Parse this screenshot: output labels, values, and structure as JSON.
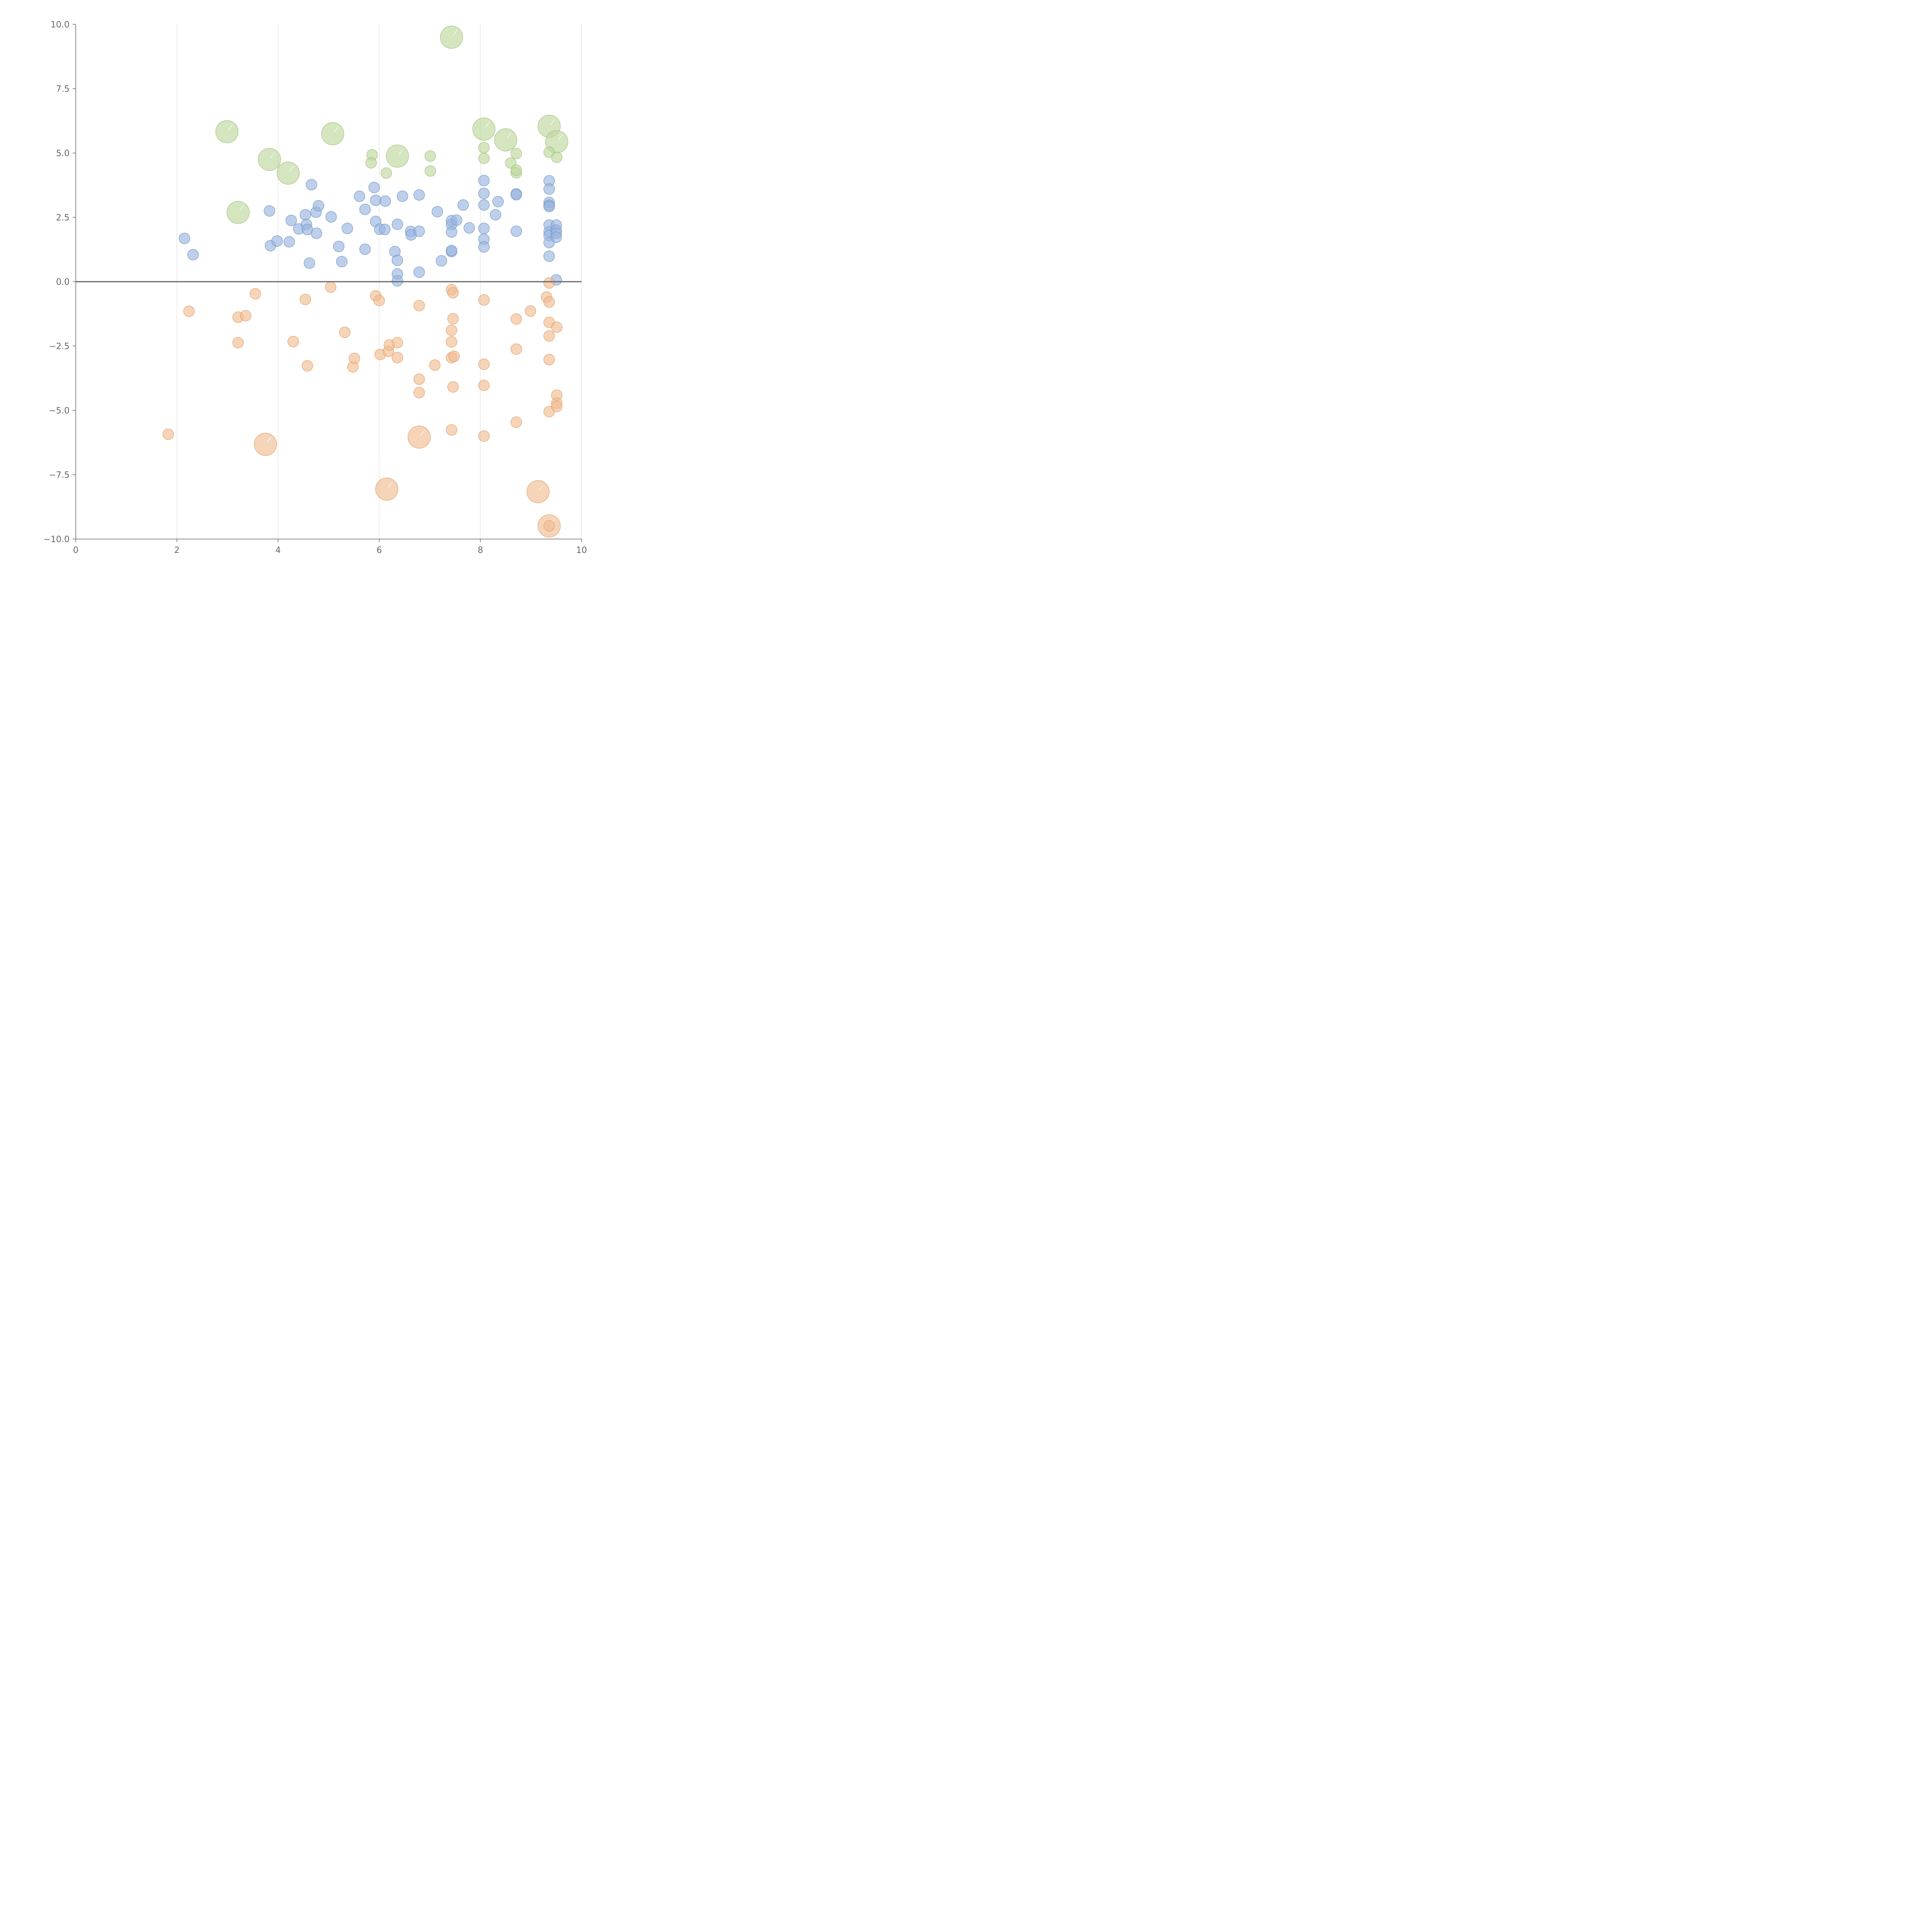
{
  "chart_data": {
    "type": "scatter",
    "title": "",
    "xlabel": "",
    "ylabel": "",
    "xlim": [
      0,
      10
    ],
    "ylim": [
      -10,
      10
    ],
    "grid": {
      "vertical": true,
      "horizontal": false
    },
    "zero_line": true,
    "legend": "none",
    "x_ticks": [
      "0",
      "2",
      "4",
      "6",
      "8",
      "10"
    ],
    "x_tick_values": [
      0,
      2,
      4,
      6,
      8,
      10
    ],
    "y_ticks": [
      "10.0",
      "7.5",
      "5.0",
      "2.5",
      "0.0",
      "−2.5",
      "−5.0",
      "−7.5",
      "−10.0"
    ],
    "y_tick_values": [
      10,
      7.5,
      5,
      2.5,
      0,
      -2.5,
      -5,
      -7.5,
      -10
    ],
    "series": [
      {
        "color": "#9ab6df",
        "stroke": "#7497c9",
        "points": [
          [
            2.15,
            1.68,
            0
          ],
          [
            2.32,
            1.05,
            0
          ],
          [
            3.83,
            2.75,
            0
          ],
          [
            3.85,
            1.4,
            0
          ],
          [
            3.98,
            1.58,
            0
          ],
          [
            4.22,
            1.55,
            0
          ],
          [
            4.26,
            2.38,
            0
          ],
          [
            4.41,
            2.05,
            0
          ],
          [
            4.54,
            2.6,
            0
          ],
          [
            4.56,
            2.22,
            0
          ],
          [
            4.58,
            2.03,
            0
          ],
          [
            4.62,
            0.72,
            0
          ],
          [
            4.66,
            3.77,
            0
          ],
          [
            4.75,
            2.7,
            0
          ],
          [
            4.76,
            1.88,
            0
          ],
          [
            4.8,
            2.95,
            0
          ],
          [
            5.05,
            2.52,
            0
          ],
          [
            5.2,
            1.37,
            0
          ],
          [
            5.26,
            0.78,
            0
          ],
          [
            5.37,
            2.07,
            0
          ],
          [
            5.61,
            3.32,
            0
          ],
          [
            5.72,
            2.81,
            0
          ],
          [
            5.72,
            1.26,
            0
          ],
          [
            5.9,
            3.66,
            0
          ],
          [
            5.93,
            3.16,
            0
          ],
          [
            5.93,
            2.34,
            0
          ],
          [
            6.01,
            2.04,
            0
          ],
          [
            6.12,
            3.13,
            0
          ],
          [
            6.11,
            2.03,
            0
          ],
          [
            6.31,
            1.17,
            0
          ],
          [
            6.36,
            2.23,
            0
          ],
          [
            6.36,
            0.83,
            0
          ],
          [
            6.36,
            0.3,
            0
          ],
          [
            6.36,
            0.03,
            0
          ],
          [
            6.46,
            3.32,
            0
          ],
          [
            6.62,
            1.95,
            0
          ],
          [
            6.63,
            1.82,
            0
          ],
          [
            6.79,
            1.96,
            0
          ],
          [
            6.79,
            3.37,
            0
          ],
          [
            6.79,
            0.37,
            0
          ],
          [
            7.15,
            2.72,
            0
          ],
          [
            7.23,
            0.81,
            0
          ],
          [
            7.43,
            2.37,
            0
          ],
          [
            7.43,
            2.22,
            0
          ],
          [
            7.43,
            1.93,
            0
          ],
          [
            7.43,
            1.17,
            0
          ],
          [
            7.43,
            1.21,
            0
          ],
          [
            7.53,
            2.39,
            0
          ],
          [
            7.66,
            2.98,
            0
          ],
          [
            7.78,
            2.09,
            0
          ],
          [
            8.07,
            3.93,
            0
          ],
          [
            8.07,
            3.43,
            0
          ],
          [
            8.07,
            2.98,
            0
          ],
          [
            8.07,
            2.07,
            0
          ],
          [
            8.07,
            1.65,
            0
          ],
          [
            8.07,
            1.35,
            0
          ],
          [
            8.35,
            3.11,
            0
          ],
          [
            8.3,
            2.6,
            0
          ],
          [
            8.71,
            3.41,
            0
          ],
          [
            8.71,
            3.38,
            0
          ],
          [
            8.71,
            1.96,
            0
          ],
          [
            9.36,
            3.92,
            0
          ],
          [
            9.36,
            3.6,
            0
          ],
          [
            9.36,
            3.08,
            0
          ],
          [
            9.36,
            2.97,
            0
          ],
          [
            9.36,
            2.92,
            0
          ],
          [
            9.36,
            2.2,
            0
          ],
          [
            9.36,
            1.93,
            0
          ],
          [
            9.36,
            1.8,
            0
          ],
          [
            9.36,
            1.52,
            0
          ],
          [
            9.36,
            0.99,
            0
          ],
          [
            9.5,
            2.2,
            0
          ],
          [
            9.5,
            2.0,
            0
          ],
          [
            9.5,
            1.88,
            0
          ],
          [
            9.5,
            1.73,
            0
          ],
          [
            9.5,
            0.07,
            0
          ]
        ]
      },
      {
        "color": "#bfd79e",
        "stroke": "#a3c37d",
        "points": [
          [
            2.99,
            5.83,
            1
          ],
          [
            3.21,
            2.69,
            1
          ],
          [
            3.83,
            4.75,
            1
          ],
          [
            4.2,
            4.22,
            1
          ],
          [
            5.08,
            5.75,
            1
          ],
          [
            5.86,
            4.93,
            0
          ],
          [
            5.84,
            4.62,
            0
          ],
          [
            6.14,
            4.22,
            0
          ],
          [
            6.36,
            4.88,
            1
          ],
          [
            7.01,
            4.88,
            0
          ],
          [
            7.01,
            4.3,
            0
          ],
          [
            7.43,
            9.5,
            1
          ],
          [
            8.07,
            5.93,
            1
          ],
          [
            8.07,
            5.21,
            0
          ],
          [
            8.07,
            4.79,
            0
          ],
          [
            8.5,
            5.51,
            1
          ],
          [
            8.6,
            4.61,
            0
          ],
          [
            8.71,
            4.98,
            0
          ],
          [
            8.71,
            4.23,
            0
          ],
          [
            8.71,
            4.33,
            0
          ],
          [
            9.36,
            6.04,
            1
          ],
          [
            9.51,
            5.44,
            1
          ],
          [
            9.36,
            5.03,
            0
          ],
          [
            9.51,
            4.83,
            0
          ]
        ]
      },
      {
        "color": "#f1bd92",
        "stroke": "#e2a06b",
        "points": [
          [
            1.83,
            -5.93,
            0
          ],
          [
            2.24,
            -1.15,
            0
          ],
          [
            3.21,
            -1.38,
            0
          ],
          [
            3.21,
            -2.37,
            0
          ],
          [
            3.36,
            -1.32,
            0
          ],
          [
            3.55,
            -0.47,
            0
          ],
          [
            3.75,
            -6.32,
            1
          ],
          [
            4.3,
            -2.33,
            0
          ],
          [
            4.54,
            -0.69,
            0
          ],
          [
            4.58,
            -3.27,
            0
          ],
          [
            5.04,
            -0.21,
            0
          ],
          [
            5.32,
            -1.97,
            0
          ],
          [
            5.48,
            -3.31,
            0
          ],
          [
            5.51,
            -2.98,
            0
          ],
          [
            5.93,
            -0.55,
            0
          ],
          [
            6.0,
            -0.73,
            0
          ],
          [
            6.02,
            -2.83,
            0
          ],
          [
            6.15,
            -8.06,
            1
          ],
          [
            6.18,
            -2.71,
            0
          ],
          [
            6.2,
            -2.46,
            0
          ],
          [
            6.36,
            -2.37,
            0
          ],
          [
            6.36,
            -2.95,
            0
          ],
          [
            6.79,
            -0.93,
            0
          ],
          [
            6.79,
            -3.79,
            0
          ],
          [
            6.79,
            -4.31,
            0
          ],
          [
            6.79,
            -6.04,
            1
          ],
          [
            7.1,
            -3.24,
            0
          ],
          [
            7.43,
            -0.31,
            0
          ],
          [
            7.46,
            -0.43,
            0
          ],
          [
            7.46,
            -1.44,
            0
          ],
          [
            7.43,
            -1.89,
            0
          ],
          [
            7.43,
            -2.34,
            0
          ],
          [
            7.43,
            -2.95,
            0
          ],
          [
            7.48,
            -2.9,
            0
          ],
          [
            7.46,
            -4.09,
            0
          ],
          [
            7.43,
            -5.76,
            0
          ],
          [
            8.07,
            -0.71,
            0
          ],
          [
            8.07,
            -3.21,
            0
          ],
          [
            8.07,
            -4.03,
            0
          ],
          [
            8.07,
            -6.0,
            0
          ],
          [
            8.71,
            -1.45,
            0
          ],
          [
            8.71,
            -2.62,
            0
          ],
          [
            8.71,
            -5.46,
            0
          ],
          [
            8.99,
            -1.14,
            0
          ],
          [
            9.14,
            -8.16,
            1
          ],
          [
            9.36,
            -0.05,
            0
          ],
          [
            9.31,
            -0.6,
            0
          ],
          [
            9.36,
            -0.79,
            0
          ],
          [
            9.36,
            -1.58,
            0
          ],
          [
            9.36,
            -2.11,
            0
          ],
          [
            9.36,
            -3.03,
            0
          ],
          [
            9.36,
            -5.05,
            0
          ],
          [
            9.36,
            -9.49,
            1
          ],
          [
            9.36,
            -9.49,
            0
          ],
          [
            9.51,
            -1.77,
            0
          ],
          [
            9.51,
            -4.41,
            0
          ],
          [
            9.51,
            -4.72,
            0
          ],
          [
            9.51,
            -4.85,
            0
          ]
        ]
      }
    ]
  }
}
